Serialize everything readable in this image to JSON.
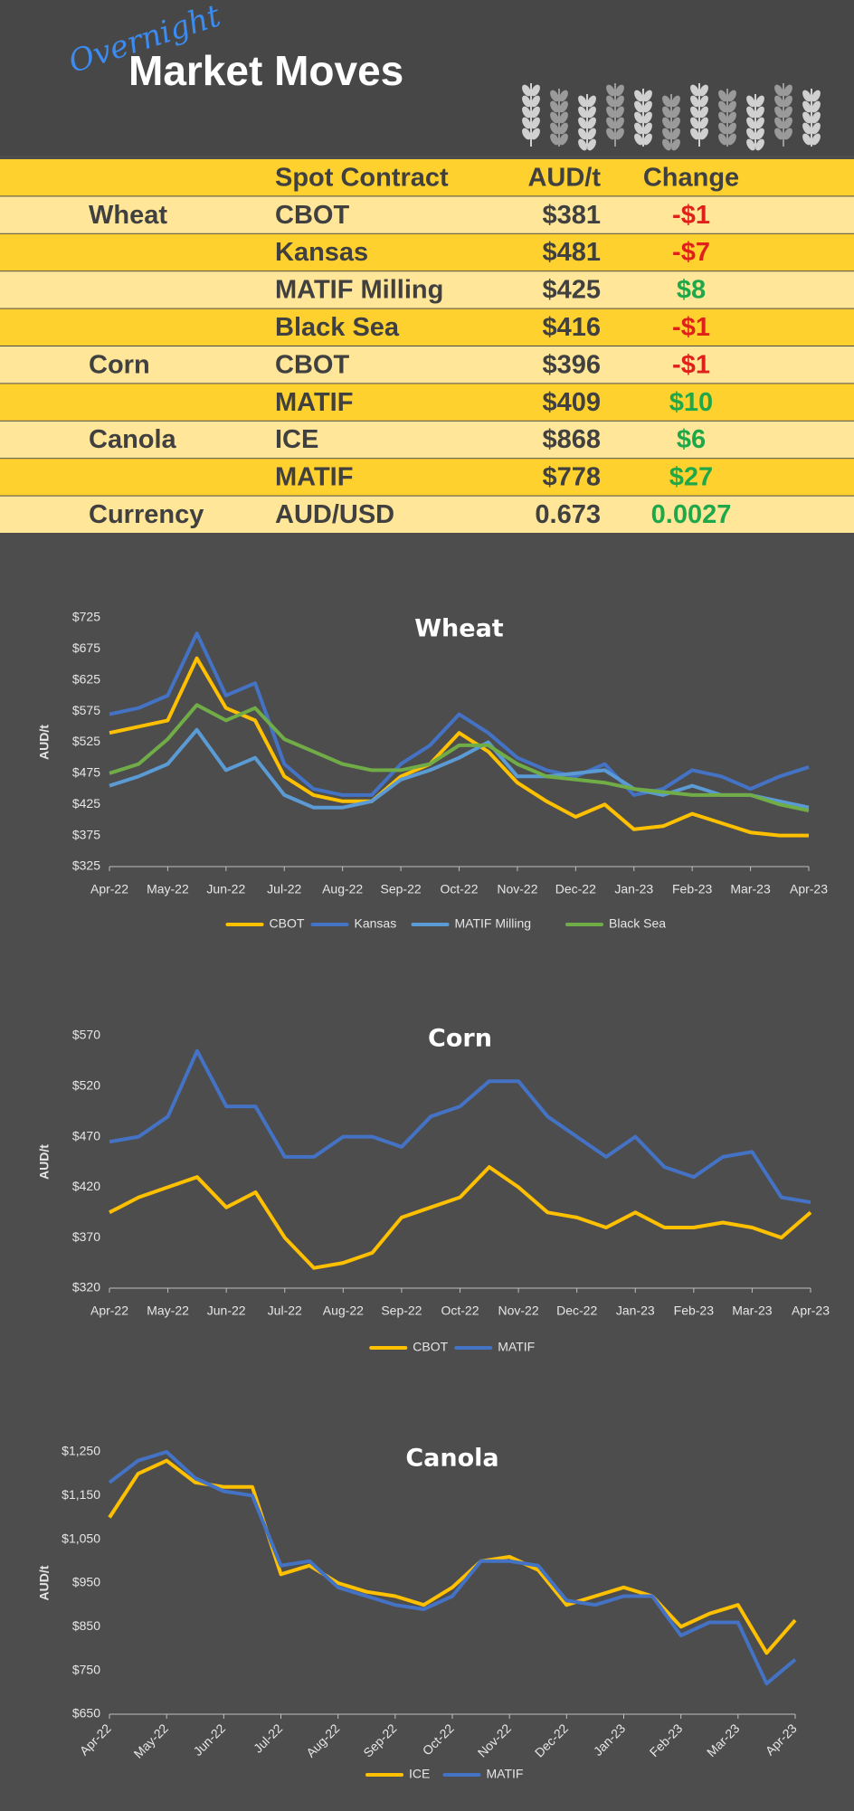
{
  "header": {
    "title_script": "Overnight",
    "title": "Market Moves"
  },
  "table": {
    "header": {
      "contract": "Spot Contract",
      "price": "AUD/t",
      "change": "Change"
    },
    "rows": [
      {
        "group": "Wheat",
        "contract": "CBOT",
        "price": "$381",
        "change": "-$1"
      },
      {
        "contract": "Kansas",
        "price": "$481",
        "change": "-$7"
      },
      {
        "contract": "MATIF Milling",
        "price": "$425",
        "change": "$8"
      },
      {
        "contract": "Black Sea",
        "price": "$416",
        "change": "-$1"
      },
      {
        "group": "Corn",
        "contract": "CBOT",
        "price": "$396",
        "change": "-$1"
      },
      {
        "contract": "MATIF",
        "price": "$409",
        "change": "$10"
      },
      {
        "group": "Canola",
        "contract": "ICE",
        "price": "$868",
        "change": "$6"
      },
      {
        "contract": "MATIF",
        "price": "$778",
        "change": "$27"
      },
      {
        "group": "Currency",
        "contract": "AUD/USD",
        "price": "0.673",
        "change": "0.0027"
      }
    ]
  },
  "chart_data": [
    {
      "type": "line",
      "title": "Wheat",
      "y_label": "AUD/t",
      "legend": "bottom",
      "grid": false,
      "categories": [
        "Apr-22",
        null,
        "May-22",
        null,
        "Jun-22",
        null,
        "Jul-22",
        null,
        "Aug-22",
        null,
        "Sep-22",
        null,
        "Oct-22",
        null,
        "Nov-22",
        null,
        "Dec-22",
        null,
        "Jan-23",
        null,
        "Feb-23",
        null,
        "Mar-23",
        null,
        "Apr-23"
      ],
      "ylim": [
        325,
        725
      ],
      "yticks": [
        {
          "value": 325,
          "label": "$325"
        },
        {
          "value": 375,
          "label": "$375"
        },
        {
          "value": 425,
          "label": "$425"
        },
        {
          "value": 475,
          "label": "$475"
        },
        {
          "value": 525,
          "label": "$525"
        },
        {
          "value": 575,
          "label": "$575"
        },
        {
          "value": 625,
          "label": "$625"
        },
        {
          "value": 675,
          "label": "$675"
        },
        {
          "value": 725,
          "label": "$725"
        }
      ],
      "series": [
        {
          "name": "CBOT",
          "color": "#ffc000",
          "values": [
            540,
            550,
            560,
            660,
            580,
            560,
            470,
            440,
            430,
            430,
            470,
            490,
            540,
            510,
            460,
            430,
            405,
            425,
            385,
            390,
            410,
            395,
            380,
            375,
            375
          ]
        },
        {
          "name": "Kansas",
          "color": "#4472c4",
          "values": [
            570,
            580,
            600,
            700,
            600,
            620,
            490,
            450,
            440,
            440,
            490,
            520,
            570,
            540,
            500,
            480,
            470,
            490,
            440,
            450,
            480,
            470,
            450,
            470,
            485
          ]
        },
        {
          "name": "MATIF Milling",
          "color": "#5b9bd5",
          "values": [
            455,
            470,
            490,
            545,
            480,
            500,
            440,
            420,
            420,
            430,
            465,
            480,
            500,
            525,
            470,
            470,
            475,
            480,
            450,
            440,
            455,
            440,
            440,
            430,
            420
          ]
        },
        {
          "name": "Black Sea",
          "color": "#70ad47",
          "values": [
            475,
            490,
            530,
            585,
            560,
            580,
            530,
            510,
            490,
            480,
            480,
            490,
            520,
            520,
            490,
            470,
            465,
            460,
            450,
            445,
            440,
            440,
            440,
            425,
            415
          ]
        }
      ]
    },
    {
      "type": "line",
      "title": "Corn",
      "y_label": "AUD/t",
      "legend": "bottom",
      "grid": false,
      "categories": [
        "Apr-22",
        null,
        "May-22",
        null,
        "Jun-22",
        null,
        "Jul-22",
        null,
        "Aug-22",
        null,
        "Sep-22",
        null,
        "Oct-22",
        null,
        "Nov-22",
        null,
        "Dec-22",
        null,
        "Jan-23",
        null,
        "Feb-23",
        null,
        "Mar-23",
        null,
        "Apr-23"
      ],
      "ylim": [
        320,
        570
      ],
      "yticks": [
        {
          "value": 320,
          "label": "$320"
        },
        {
          "value": 370,
          "label": "$370"
        },
        {
          "value": 420,
          "label": "$420"
        },
        {
          "value": 470,
          "label": "$470"
        },
        {
          "value": 520,
          "label": "$520"
        },
        {
          "value": 570,
          "label": "$570"
        }
      ],
      "series": [
        {
          "name": "CBOT",
          "color": "#ffc000",
          "values": [
            395,
            410,
            420,
            430,
            400,
            415,
            370,
            340,
            345,
            355,
            390,
            400,
            410,
            440,
            420,
            395,
            390,
            380,
            395,
            380,
            380,
            385,
            380,
            370,
            395
          ]
        },
        {
          "name": "MATIF",
          "color": "#4472c4",
          "values": [
            465,
            470,
            490,
            555,
            500,
            500,
            450,
            450,
            470,
            470,
            460,
            490,
            500,
            525,
            525,
            490,
            470,
            450,
            470,
            440,
            430,
            450,
            455,
            410,
            405
          ]
        }
      ]
    },
    {
      "type": "line",
      "title": "Canola",
      "y_label": "AUD/t",
      "legend": "bottom",
      "grid": false,
      "rotate_x_labels": true,
      "categories": [
        "Apr-22",
        null,
        "May-22",
        null,
        "Jun-22",
        null,
        "Jul-22",
        null,
        "Aug-22",
        null,
        "Sep-22",
        null,
        "Oct-22",
        null,
        "Nov-22",
        null,
        "Dec-22",
        null,
        "Jan-23",
        null,
        "Feb-23",
        null,
        "Mar-23",
        null,
        "Apr-23"
      ],
      "ylim": [
        650,
        1250
      ],
      "yticks": [
        {
          "value": 650,
          "label": "$650"
        },
        {
          "value": 750,
          "label": "$750"
        },
        {
          "value": 850,
          "label": "$850"
        },
        {
          "value": 950,
          "label": "$950"
        },
        {
          "value": 1050,
          "label": "$1,050"
        },
        {
          "value": 1150,
          "label": "$1,150"
        },
        {
          "value": 1250,
          "label": "$1,250"
        }
      ],
      "series": [
        {
          "name": "ICE",
          "color": "#ffc000",
          "values": [
            1100,
            1200,
            1230,
            1180,
            1170,
            1170,
            970,
            990,
            950,
            930,
            920,
            900,
            940,
            1000,
            1010,
            980,
            900,
            920,
            940,
            920,
            850,
            880,
            900,
            790,
            865
          ]
        },
        {
          "name": "MATIF",
          "color": "#4472c4",
          "values": [
            1180,
            1230,
            1250,
            1190,
            1160,
            1150,
            990,
            1000,
            940,
            920,
            900,
            890,
            920,
            1000,
            1000,
            990,
            910,
            900,
            920,
            920,
            830,
            860,
            860,
            720,
            775
          ]
        }
      ]
    }
  ]
}
